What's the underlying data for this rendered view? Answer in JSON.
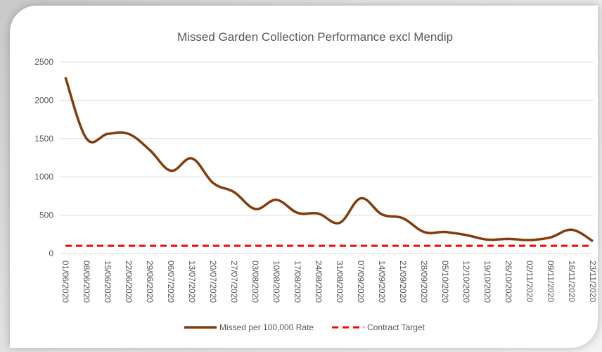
{
  "chart_data": {
    "type": "line",
    "title": "Missed Garden Collection Performance excl Mendip",
    "x": [
      "01/06/2020",
      "08/06/2020",
      "15/06/2020",
      "22/06/2020",
      "29/06/2020",
      "06/07/2020",
      "13/07/2020",
      "20/07/2020",
      "27/07/2020",
      "03/08/2020",
      "10/08/2020",
      "17/08/2020",
      "24/08/2020",
      "31/08/2020",
      "07/09/2020",
      "14/09/2020",
      "21/09/2020",
      "28/09/2020",
      "05/10/2020",
      "12/10/2020",
      "19/10/2020",
      "26/10/2020",
      "02/11/2020",
      "09/11/2020",
      "16/11/2020",
      "23/11/2020"
    ],
    "series": [
      {
        "name": "Missed per 100,000 Rate",
        "color": "#843c0c",
        "values": [
          2300,
          1500,
          1560,
          1560,
          1350,
          1080,
          1240,
          920,
          800,
          580,
          700,
          530,
          520,
          400,
          720,
          510,
          460,
          280,
          280,
          240,
          180,
          190,
          175,
          210,
          310,
          160
        ]
      },
      {
        "name": "Contract Target",
        "color": "#ff0000",
        "dashed": true,
        "values": [
          100,
          100,
          100,
          100,
          100,
          100,
          100,
          100,
          100,
          100,
          100,
          100,
          100,
          100,
          100,
          100,
          100,
          100,
          100,
          100,
          100,
          100,
          100,
          100,
          100,
          100
        ]
      }
    ],
    "ylim": [
      0,
      2500
    ],
    "yticks": [
      0,
      500,
      1000,
      1500,
      2000,
      2500
    ],
    "grid": true,
    "legend": "bottom"
  }
}
